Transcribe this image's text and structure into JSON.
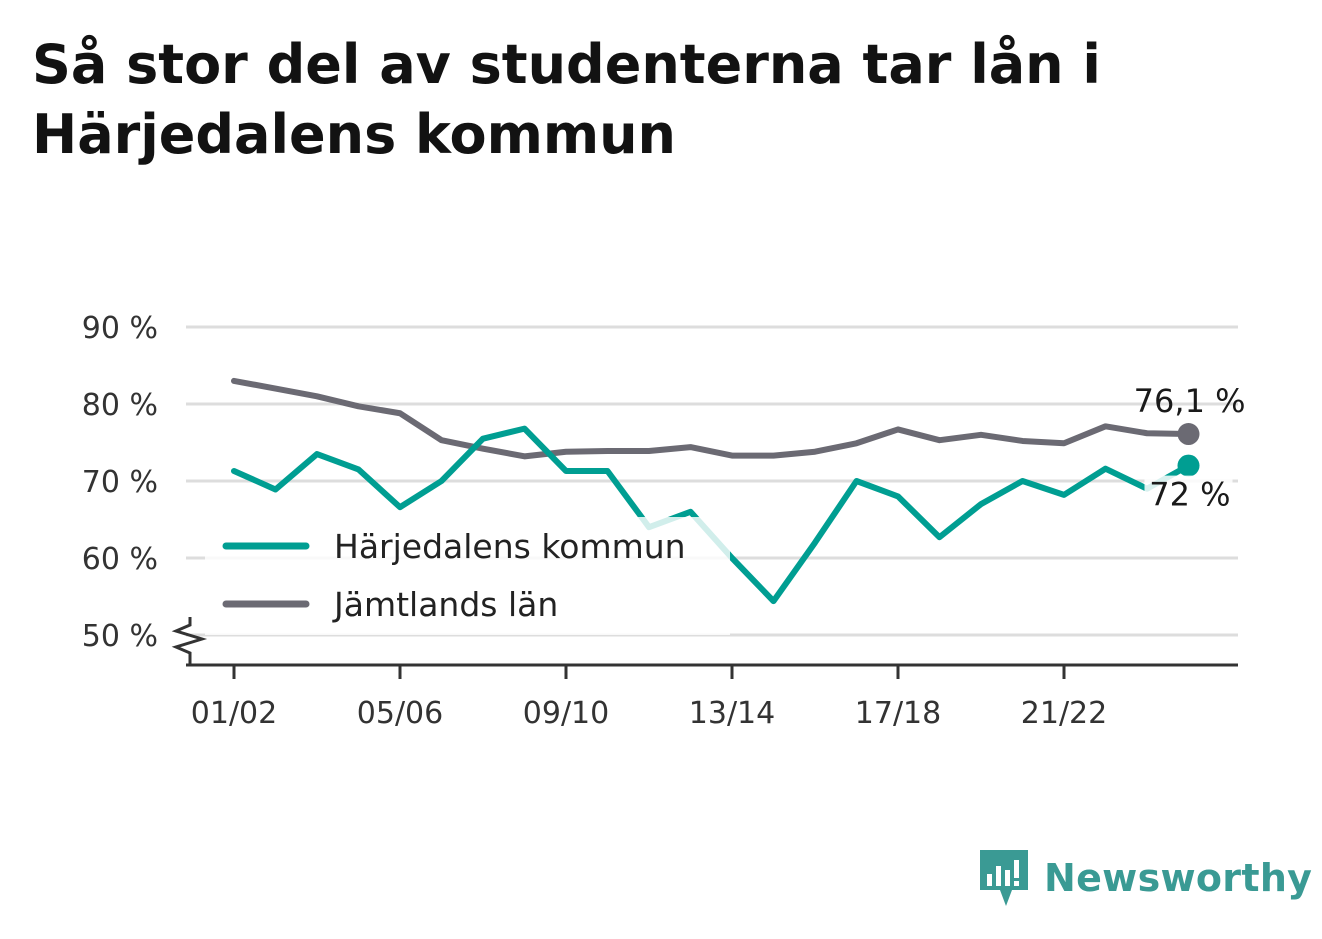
{
  "title": "Så stor del av studenterna tar lån i Härjedalens kommun",
  "brand": {
    "name": "Newsworthy",
    "icon": "newsworthy-logo-icon",
    "color": "#3a9a94"
  },
  "colors": {
    "kommun": "#009e92",
    "lan": "#6b6a73",
    "grid": "#dddddd",
    "axis": "#333333"
  },
  "chart_data": {
    "type": "line",
    "title": "Så stor del av studenterna tar lån i Härjedalens kommun",
    "xlabel": "",
    "ylabel": "",
    "ylim": [
      50,
      90
    ],
    "y_axis_break": true,
    "grid": true,
    "legend_position": "bottom-left",
    "yticks": [
      {
        "value": 90,
        "label": "90 %"
      },
      {
        "value": 80,
        "label": "80 %"
      },
      {
        "value": 70,
        "label": "70 %"
      },
      {
        "value": 60,
        "label": "60 %"
      },
      {
        "value": 50,
        "label": "50 %"
      }
    ],
    "x": [
      "01/02",
      "02/03",
      "03/04",
      "04/05",
      "05/06",
      "06/07",
      "07/08",
      "08/09",
      "09/10",
      "10/11",
      "11/12",
      "12/13",
      "13/14",
      "14/15",
      "15/16",
      "16/17",
      "17/18",
      "18/19",
      "19/20",
      "20/21",
      "21/22",
      "22/23",
      "23/24",
      "24/25"
    ],
    "xtick_labels": [
      "01/02",
      "05/06",
      "09/10",
      "13/14",
      "17/18",
      "21/22"
    ],
    "series": [
      {
        "name": "Härjedalens kommun",
        "color": "#009e92",
        "values": [
          71.3,
          68.9,
          73.5,
          71.5,
          66.6,
          70.0,
          75.5,
          76.8,
          71.3,
          71.3,
          64.0,
          66.0,
          60.0,
          54.4,
          62.0,
          70.0,
          68.0,
          62.7,
          67.0,
          70.0,
          68.2,
          71.6,
          69.0,
          72.0
        ],
        "end_label": "72 %"
      },
      {
        "name": "Jämtlands län",
        "color": "#6b6a73",
        "values": [
          83.0,
          82.0,
          81.0,
          79.7,
          78.8,
          75.3,
          74.2,
          73.2,
          73.8,
          73.9,
          73.9,
          74.4,
          73.3,
          73.3,
          73.8,
          74.9,
          76.7,
          75.3,
          76.0,
          75.2,
          74.9,
          77.1,
          76.2,
          76.1
        ],
        "end_label": "76,1 %"
      }
    ]
  }
}
